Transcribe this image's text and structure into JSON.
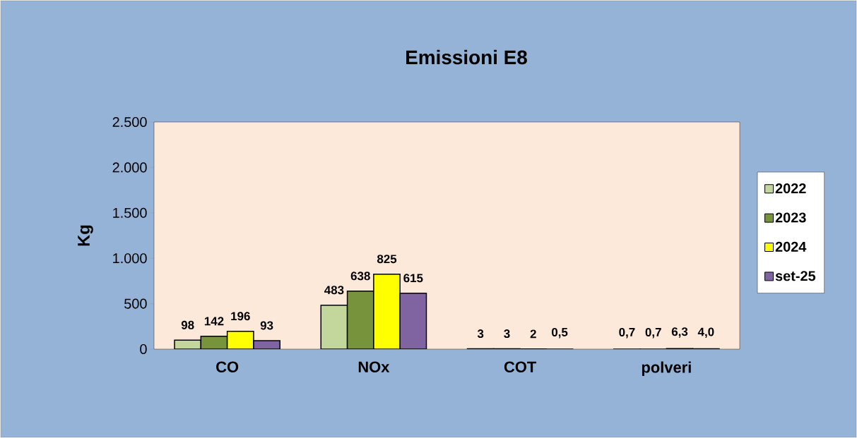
{
  "chart_data": {
    "type": "bar",
    "title": "Emissioni E8",
    "ylabel": "Kg",
    "categories": [
      "CO",
      "NOx",
      "COT",
      "polveri"
    ],
    "series": [
      {
        "name": "2022",
        "color": "#c3d69b",
        "values": [
          98,
          483,
          3,
          0.7
        ],
        "value_labels": [
          "98",
          "483",
          "3",
          "0,7"
        ]
      },
      {
        "name": "2023",
        "color": "#77933c",
        "values": [
          142,
          638,
          3,
          0.7
        ],
        "value_labels": [
          "142",
          "638",
          "3",
          "0,7"
        ]
      },
      {
        "name": "2024",
        "color": "#ffff00",
        "values": [
          196,
          825,
          2,
          6.3
        ],
        "value_labels": [
          "196",
          "825",
          "2",
          "6,3"
        ]
      },
      {
        "name": "set-25",
        "color": "#8064a2",
        "values": [
          93,
          615,
          0.5,
          4.0
        ],
        "value_labels": [
          "93",
          "615",
          "0,5",
          "4,0"
        ]
      }
    ],
    "ylim": [
      0,
      2500
    ],
    "yticks": [
      0,
      {
        "value": 500,
        "label": "500"
      },
      {
        "value": 1000,
        "label": "1.000"
      },
      {
        "value": 1500,
        "label": "1.500"
      },
      {
        "value": 2000,
        "label": "2.000"
      },
      {
        "value": 2500,
        "label": "2.500"
      }
    ],
    "legend": "right",
    "grid": false
  }
}
